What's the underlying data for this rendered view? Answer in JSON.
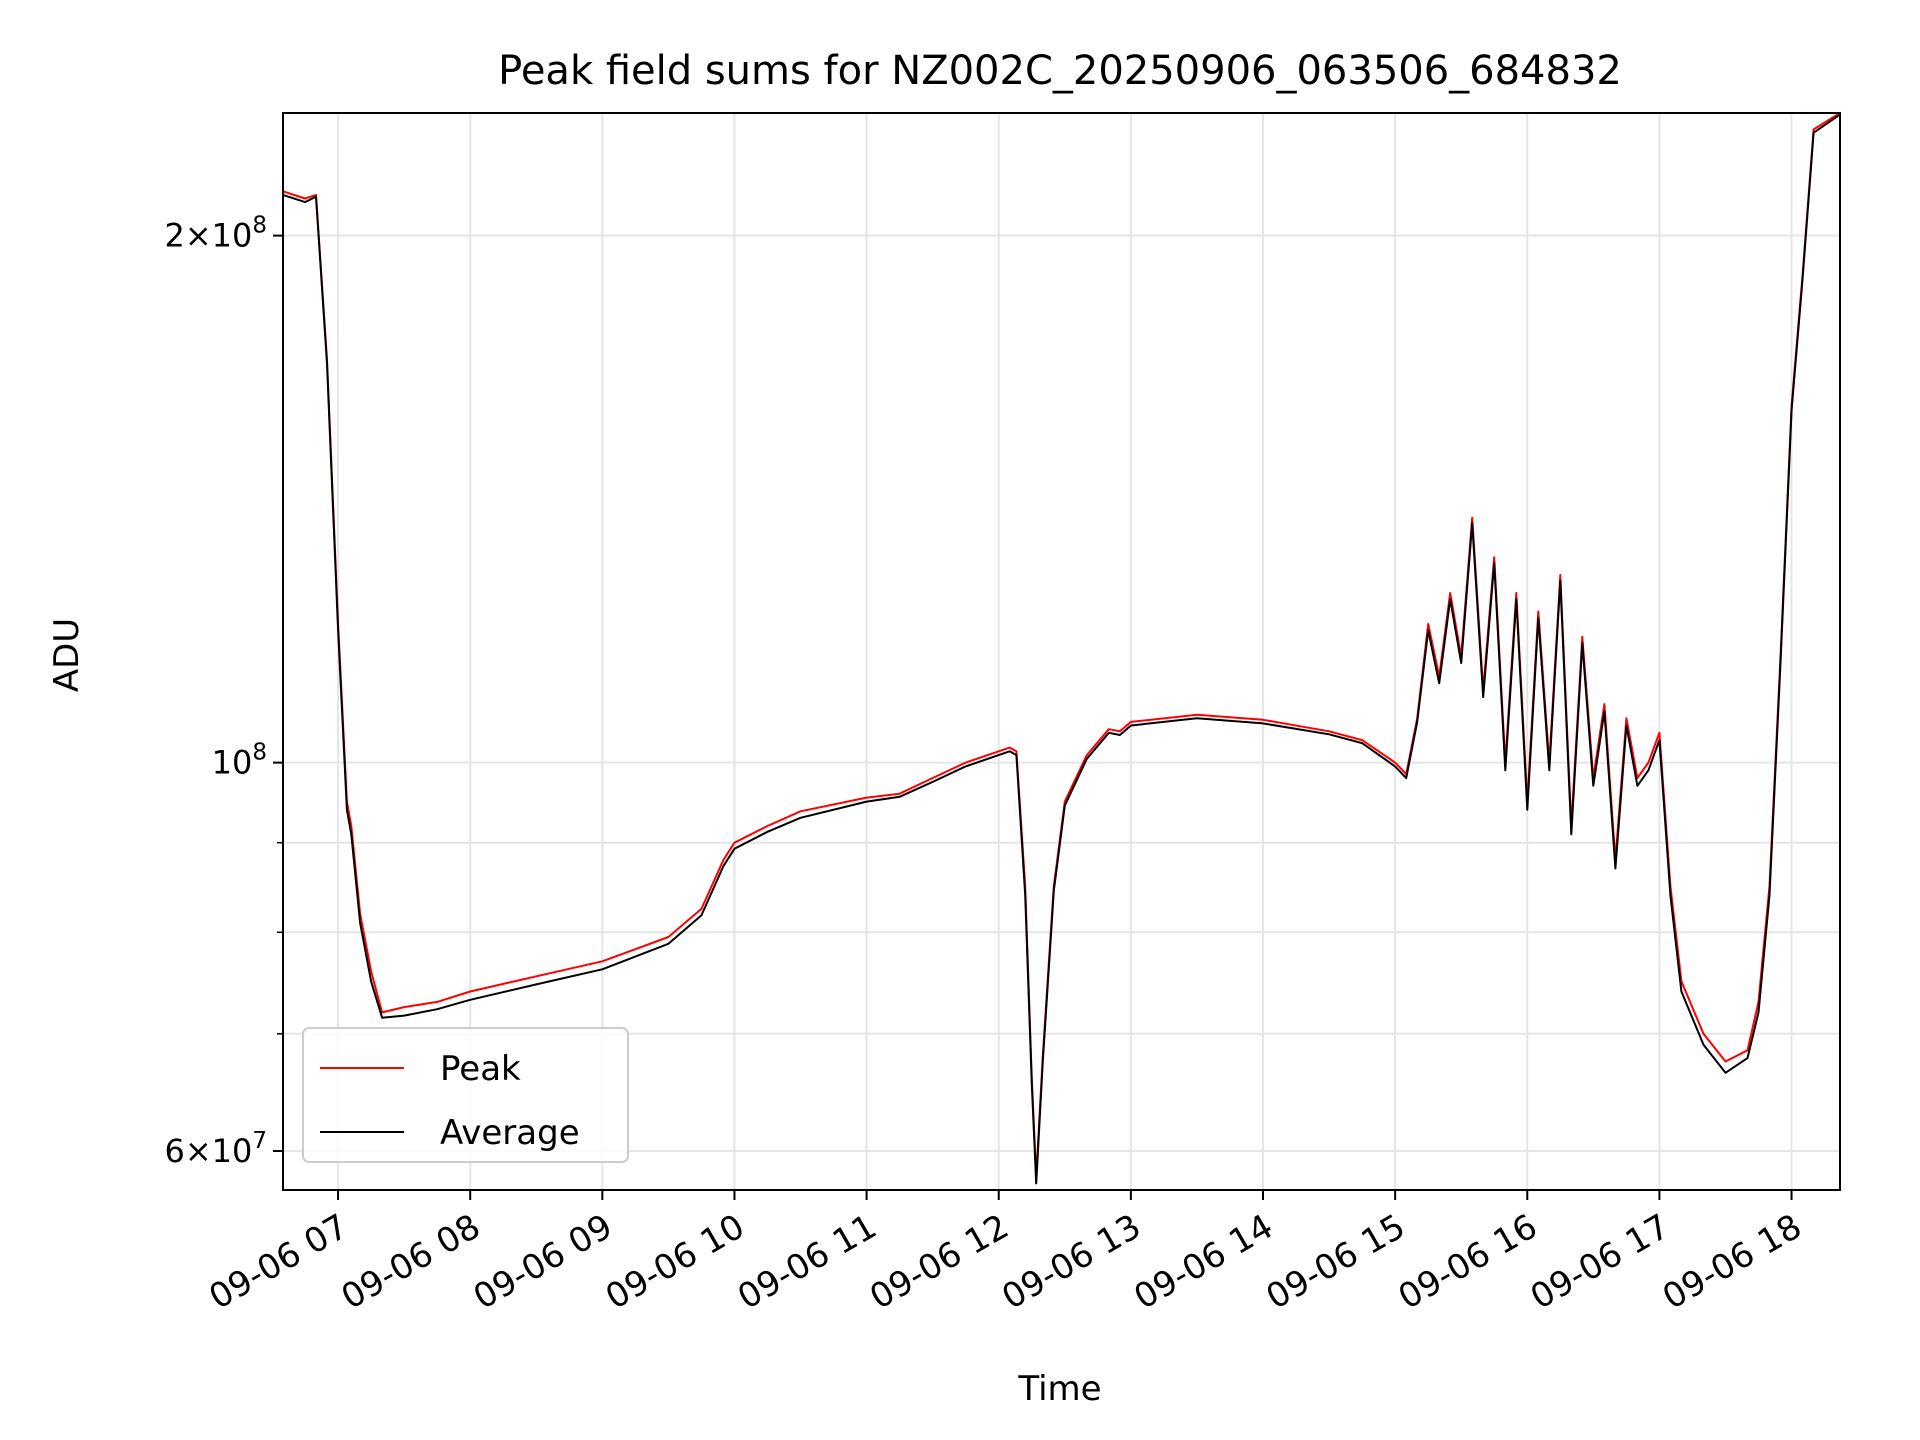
{
  "chart_data": {
    "type": "line",
    "title": "Peak field sums for NZ002C_20250906_063506_684832",
    "xlabel": "Time",
    "ylabel": "ADU",
    "y_scale": "log",
    "ylim": [
      57000000,
      235000000
    ],
    "xlim": [
      "09-06 06:35",
      "09-06 18:22"
    ],
    "grid": true,
    "legend_position": "lower-left",
    "x_ticks": [
      "09-06 07",
      "09-06 08",
      "09-06 09",
      "09-06 10",
      "09-06 11",
      "09-06 12",
      "09-06 13",
      "09-06 14",
      "09-06 15",
      "09-06 16",
      "09-06 17",
      "09-06 18"
    ],
    "y_ticks_major": [
      {
        "value": 200000000,
        "mantissa": "2",
        "exponent": "8"
      },
      {
        "value": 100000000,
        "mantissa": "",
        "exponent": "8"
      },
      {
        "value": 60000000,
        "mantissa": "6",
        "exponent": "7"
      }
    ],
    "y_ticks_minor": [
      70000000,
      80000000,
      90000000,
      300000000
    ],
    "series": [
      {
        "name": "Peak",
        "color": "#ff0000",
        "points": [
          [
            "09-06 06:35",
            212000000
          ],
          [
            "09-06 06:45",
            210000000
          ],
          [
            "09-06 06:50",
            211000000
          ],
          [
            "09-06 06:55",
            170000000
          ],
          [
            "09-06 07:00",
            120000000
          ],
          [
            "09-06 07:04",
            95000000
          ],
          [
            "09-06 07:06",
            92000000
          ],
          [
            "09-06 07:10",
            82000000
          ],
          [
            "09-06 07:15",
            76000000
          ],
          [
            "09-06 07:20",
            72000000
          ],
          [
            "09-06 07:30",
            72500000
          ],
          [
            "09-06 07:45",
            73000000
          ],
          [
            "09-06 08:00",
            74000000
          ],
          [
            "09-06 08:30",
            75500000
          ],
          [
            "09-06 09:00",
            77000000
          ],
          [
            "09-06 09:30",
            79500000
          ],
          [
            "09-06 09:45",
            82500000
          ],
          [
            "09-06 09:55",
            88000000
          ],
          [
            "09-06 10:00",
            90000000
          ],
          [
            "09-06 10:15",
            92000000
          ],
          [
            "09-06 10:30",
            93800000
          ],
          [
            "09-06 11:00",
            95500000
          ],
          [
            "09-06 11:15",
            96000000
          ],
          [
            "09-06 11:30",
            98000000
          ],
          [
            "09-06 11:45",
            100000000
          ],
          [
            "09-06 12:00",
            101500000
          ],
          [
            "09-06 12:05",
            102000000
          ],
          [
            "09-06 12:08",
            101500000
          ],
          [
            "09-06 12:12",
            85000000
          ],
          [
            "09-06 12:15",
            66000000
          ],
          [
            "09-06 12:17",
            58000000
          ],
          [
            "09-06 12:20",
            68000000
          ],
          [
            "09-06 12:25",
            85000000
          ],
          [
            "09-06 12:30",
            95000000
          ],
          [
            "09-06 12:40",
            101000000
          ],
          [
            "09-06 12:50",
            104500000
          ],
          [
            "09-06 12:55",
            104200000
          ],
          [
            "09-06 13:00",
            105500000
          ],
          [
            "09-06 13:30",
            106500000
          ],
          [
            "09-06 14:00",
            105800000
          ],
          [
            "09-06 14:30",
            104200000
          ],
          [
            "09-06 14:45",
            103000000
          ],
          [
            "09-06 15:00",
            100000000
          ],
          [
            "09-06 15:05",
            98500000
          ],
          [
            "09-06 15:10",
            106000000
          ],
          [
            "09-06 15:15",
            120000000
          ],
          [
            "09-06 15:20",
            112000000
          ],
          [
            "09-06 15:25",
            125000000
          ],
          [
            "09-06 15:30",
            115000000
          ],
          [
            "09-06 15:35",
            138000000
          ],
          [
            "09-06 15:40",
            110000000
          ],
          [
            "09-06 15:45",
            131000000
          ],
          [
            "09-06 15:50",
            100000000
          ],
          [
            "09-06 15:55",
            125000000
          ],
          [
            "09-06 16:00",
            95000000
          ],
          [
            "09-06 16:05",
            122000000
          ],
          [
            "09-06 16:10",
            100000000
          ],
          [
            "09-06 16:15",
            128000000
          ],
          [
            "09-06 16:20",
            92000000
          ],
          [
            "09-06 16:25",
            118000000
          ],
          [
            "09-06 16:30",
            98000000
          ],
          [
            "09-06 16:35",
            108000000
          ],
          [
            "09-06 16:40",
            88000000
          ],
          [
            "09-06 16:45",
            106000000
          ],
          [
            "09-06 16:50",
            98000000
          ],
          [
            "09-06 16:55",
            100000000
          ],
          [
            "09-06 17:00",
            104000000
          ],
          [
            "09-06 17:05",
            85000000
          ],
          [
            "09-06 17:10",
            75000000
          ],
          [
            "09-06 17:20",
            70000000
          ],
          [
            "09-06 17:30",
            67500000
          ],
          [
            "09-06 17:40",
            68500000
          ],
          [
            "09-06 17:45",
            73000000
          ],
          [
            "09-06 17:50",
            85000000
          ],
          [
            "09-06 17:55",
            115000000
          ],
          [
            "09-06 18:00",
            160000000
          ],
          [
            "09-06 18:05",
            190000000
          ],
          [
            "09-06 18:10",
            230000000
          ],
          [
            "09-06 18:22",
            235000000
          ]
        ]
      },
      {
        "name": "Average",
        "color": "#000000",
        "points": [
          [
            "09-06 06:35",
            211000000
          ],
          [
            "09-06 06:45",
            209000000
          ],
          [
            "09-06 06:50",
            210500000
          ],
          [
            "09-06 06:55",
            169000000
          ],
          [
            "09-06 07:00",
            119000000
          ],
          [
            "09-06 07:04",
            94000000
          ],
          [
            "09-06 07:06",
            91000000
          ],
          [
            "09-06 07:10",
            81000000
          ],
          [
            "09-06 07:15",
            75000000
          ],
          [
            "09-06 07:20",
            71500000
          ],
          [
            "09-06 07:30",
            71700000
          ],
          [
            "09-06 07:45",
            72300000
          ],
          [
            "09-06 08:00",
            73200000
          ],
          [
            "09-06 08:30",
            74700000
          ],
          [
            "09-06 09:00",
            76200000
          ],
          [
            "09-06 09:30",
            78800000
          ],
          [
            "09-06 09:45",
            81800000
          ],
          [
            "09-06 09:55",
            87300000
          ],
          [
            "09-06 10:00",
            89300000
          ],
          [
            "09-06 10:15",
            91300000
          ],
          [
            "09-06 10:30",
            93000000
          ],
          [
            "09-06 11:00",
            95000000
          ],
          [
            "09-06 11:15",
            95600000
          ],
          [
            "09-06 11:30",
            97500000
          ],
          [
            "09-06 11:45",
            99500000
          ],
          [
            "09-06 12:00",
            101000000
          ],
          [
            "09-06 12:05",
            101500000
          ],
          [
            "09-06 12:08",
            101000000
          ],
          [
            "09-06 12:12",
            84000000
          ],
          [
            "09-06 12:15",
            65500000
          ],
          [
            "09-06 12:17",
            57500000
          ],
          [
            "09-06 12:20",
            67500000
          ],
          [
            "09-06 12:25",
            84500000
          ],
          [
            "09-06 12:30",
            94500000
          ],
          [
            "09-06 12:40",
            100500000
          ],
          [
            "09-06 12:50",
            104000000
          ],
          [
            "09-06 12:55",
            103700000
          ],
          [
            "09-06 13:00",
            105000000
          ],
          [
            "09-06 13:30",
            106000000
          ],
          [
            "09-06 14:00",
            105300000
          ],
          [
            "09-06 14:30",
            103800000
          ],
          [
            "09-06 14:45",
            102600000
          ],
          [
            "09-06 15:00",
            99500000
          ],
          [
            "09-06 15:05",
            98000000
          ],
          [
            "09-06 15:10",
            105500000
          ],
          [
            "09-06 15:15",
            119000000
          ],
          [
            "09-06 15:20",
            111000000
          ],
          [
            "09-06 15:25",
            124000000
          ],
          [
            "09-06 15:30",
            114000000
          ],
          [
            "09-06 15:35",
            137000000
          ],
          [
            "09-06 15:40",
            109000000
          ],
          [
            "09-06 15:45",
            130000000
          ],
          [
            "09-06 15:50",
            99000000
          ],
          [
            "09-06 15:55",
            124000000
          ],
          [
            "09-06 16:00",
            94000000
          ],
          [
            "09-06 16:05",
            121000000
          ],
          [
            "09-06 16:10",
            99000000
          ],
          [
            "09-06 16:15",
            127000000
          ],
          [
            "09-06 16:20",
            91000000
          ],
          [
            "09-06 16:25",
            117000000
          ],
          [
            "09-06 16:30",
            97000000
          ],
          [
            "09-06 16:35",
            107000000
          ],
          [
            "09-06 16:40",
            87000000
          ],
          [
            "09-06 16:45",
            105000000
          ],
          [
            "09-06 16:50",
            97000000
          ],
          [
            "09-06 16:55",
            99000000
          ],
          [
            "09-06 17:00",
            103000000
          ],
          [
            "09-06 17:05",
            84000000
          ],
          [
            "09-06 17:10",
            74000000
          ],
          [
            "09-06 17:20",
            69000000
          ],
          [
            "09-06 17:30",
            66500000
          ],
          [
            "09-06 17:40",
            67800000
          ],
          [
            "09-06 17:45",
            72000000
          ],
          [
            "09-06 17:50",
            84000000
          ],
          [
            "09-06 17:55",
            114000000
          ],
          [
            "09-06 18:00",
            159000000
          ],
          [
            "09-06 18:05",
            189000000
          ],
          [
            "09-06 18:10",
            229000000
          ],
          [
            "09-06 18:22",
            234500000
          ]
        ]
      }
    ]
  }
}
